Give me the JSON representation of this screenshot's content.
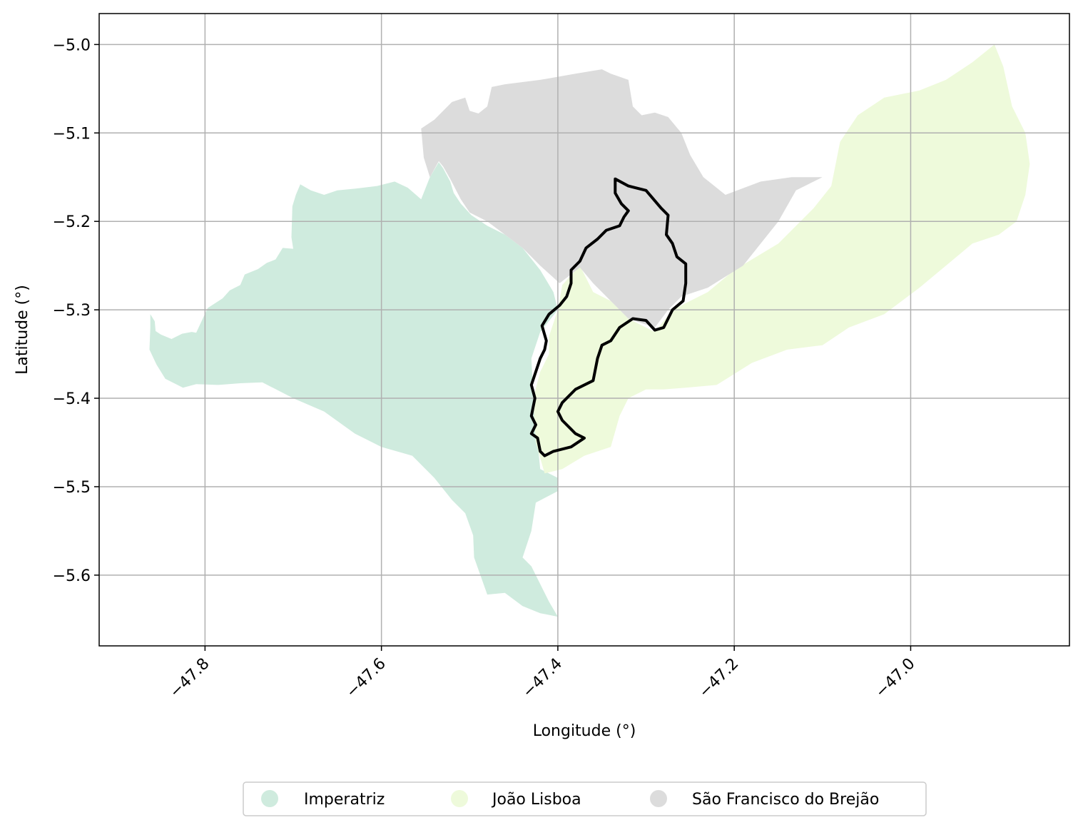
{
  "chart_data": {
    "type": "map",
    "xlabel": "Longitude (°)",
    "ylabel": "Latitude (°)",
    "xlim": [
      -47.92,
      -46.82
    ],
    "ylim": [
      -5.68,
      -4.965
    ],
    "grid": true,
    "legend_placement": "bottom-center",
    "x_ticks": [
      {
        "value": -47.8,
        "label": "−47.8"
      },
      {
        "value": -47.6,
        "label": "−47.6"
      },
      {
        "value": -47.4,
        "label": "−47.4"
      },
      {
        "value": -47.2,
        "label": "−47.2"
      },
      {
        "value": -47.0,
        "label": "−47.0"
      }
    ],
    "y_ticks": [
      {
        "value": -5.0,
        "label": "−5.0"
      },
      {
        "value": -5.1,
        "label": "−5.1"
      },
      {
        "value": -5.2,
        "label": "−5.2"
      },
      {
        "value": -5.3,
        "label": "−5.3"
      },
      {
        "value": -5.4,
        "label": "−5.4"
      },
      {
        "value": -5.5,
        "label": "−5.5"
      },
      {
        "value": -5.6,
        "label": "−5.6"
      }
    ],
    "regions": [
      {
        "name": "Imperatriz",
        "color": "#cfebde",
        "coords": [
          [
            -47.862,
            -5.305
          ],
          [
            -47.857,
            -5.313
          ],
          [
            -47.856,
            -5.324
          ],
          [
            -47.85,
            -5.328
          ],
          [
            -47.838,
            -5.333
          ],
          [
            -47.826,
            -5.327
          ],
          [
            -47.815,
            -5.325
          ],
          [
            -47.81,
            -5.326
          ],
          [
            -47.797,
            -5.298
          ],
          [
            -47.78,
            -5.287
          ],
          [
            -47.772,
            -5.278
          ],
          [
            -47.76,
            -5.272
          ],
          [
            -47.755,
            -5.26
          ],
          [
            -47.74,
            -5.254
          ],
          [
            -47.73,
            -5.247
          ],
          [
            -47.72,
            -5.243
          ],
          [
            -47.712,
            -5.23
          ],
          [
            -47.7,
            -5.231
          ],
          [
            -47.702,
            -5.218
          ],
          [
            -47.701,
            -5.183
          ],
          [
            -47.697,
            -5.17
          ],
          [
            -47.692,
            -5.158
          ],
          [
            -47.68,
            -5.165
          ],
          [
            -47.665,
            -5.17
          ],
          [
            -47.65,
            -5.165
          ],
          [
            -47.63,
            -5.163
          ],
          [
            -47.605,
            -5.16
          ],
          [
            -47.585,
            -5.155
          ],
          [
            -47.57,
            -5.162
          ],
          [
            -47.555,
            -5.175
          ],
          [
            -47.545,
            -5.15
          ],
          [
            -47.535,
            -5.133
          ],
          [
            -47.53,
            -5.14
          ],
          [
            -47.522,
            -5.155
          ],
          [
            -47.518,
            -5.168
          ],
          [
            -47.51,
            -5.18
          ],
          [
            -47.498,
            -5.193
          ],
          [
            -47.48,
            -5.205
          ],
          [
            -47.46,
            -5.215
          ],
          [
            -47.44,
            -5.23
          ],
          [
            -47.42,
            -5.255
          ],
          [
            -47.405,
            -5.28
          ],
          [
            -47.4,
            -5.3
          ],
          [
            -47.42,
            -5.325
          ],
          [
            -47.43,
            -5.355
          ],
          [
            -47.428,
            -5.395
          ],
          [
            -47.425,
            -5.43
          ],
          [
            -47.42,
            -5.48
          ],
          [
            -47.4,
            -5.49
          ],
          [
            -47.4,
            -5.505
          ],
          [
            -47.425,
            -5.518
          ],
          [
            -47.43,
            -5.55
          ],
          [
            -47.44,
            -5.58
          ],
          [
            -47.43,
            -5.59
          ],
          [
            -47.41,
            -5.63
          ],
          [
            -47.4,
            -5.647
          ],
          [
            -47.42,
            -5.643
          ],
          [
            -47.44,
            -5.635
          ],
          [
            -47.46,
            -5.62
          ],
          [
            -47.48,
            -5.622
          ],
          [
            -47.495,
            -5.58
          ],
          [
            -47.496,
            -5.555
          ],
          [
            -47.505,
            -5.53
          ],
          [
            -47.52,
            -5.515
          ],
          [
            -47.54,
            -5.49
          ],
          [
            -47.565,
            -5.465
          ],
          [
            -47.6,
            -5.455
          ],
          [
            -47.63,
            -5.44
          ],
          [
            -47.665,
            -5.415
          ],
          [
            -47.7,
            -5.4
          ],
          [
            -47.735,
            -5.382
          ],
          [
            -47.76,
            -5.383
          ],
          [
            -47.785,
            -5.385
          ],
          [
            -47.81,
            -5.384
          ],
          [
            -47.825,
            -5.388
          ],
          [
            -47.845,
            -5.378
          ],
          [
            -47.855,
            -5.362
          ],
          [
            -47.863,
            -5.345
          ],
          [
            -47.862,
            -5.32
          ]
        ]
      },
      {
        "name": "João Lisboa",
        "color": "#eefadb",
        "coords": [
          [
            -47.41,
            -5.35
          ],
          [
            -47.41,
            -5.33
          ],
          [
            -47.4,
            -5.3
          ],
          [
            -47.395,
            -5.272
          ],
          [
            -47.375,
            -5.25
          ],
          [
            -47.36,
            -5.28
          ],
          [
            -47.34,
            -5.29
          ],
          [
            -47.32,
            -5.31
          ],
          [
            -47.29,
            -5.325
          ],
          [
            -47.27,
            -5.3
          ],
          [
            -47.23,
            -5.28
          ],
          [
            -47.2,
            -5.255
          ],
          [
            -47.15,
            -5.225
          ],
          [
            -47.11,
            -5.185
          ],
          [
            -47.09,
            -5.16
          ],
          [
            -47.08,
            -5.11
          ],
          [
            -47.06,
            -5.08
          ],
          [
            -47.03,
            -5.06
          ],
          [
            -46.99,
            -5.052
          ],
          [
            -46.96,
            -5.04
          ],
          [
            -46.93,
            -5.02
          ],
          [
            -46.905,
            -5.0
          ],
          [
            -46.895,
            -5.025
          ],
          [
            -46.885,
            -5.07
          ],
          [
            -46.87,
            -5.1
          ],
          [
            -46.865,
            -5.135
          ],
          [
            -46.87,
            -5.17
          ],
          [
            -46.88,
            -5.2
          ],
          [
            -46.9,
            -5.215
          ],
          [
            -46.93,
            -5.225
          ],
          [
            -46.96,
            -5.25
          ],
          [
            -46.99,
            -5.275
          ],
          [
            -47.03,
            -5.305
          ],
          [
            -47.07,
            -5.32
          ],
          [
            -47.1,
            -5.34
          ],
          [
            -47.14,
            -5.345
          ],
          [
            -47.18,
            -5.36
          ],
          [
            -47.22,
            -5.385
          ],
          [
            -47.255,
            -5.388
          ],
          [
            -47.28,
            -5.39
          ],
          [
            -47.3,
            -5.39
          ],
          [
            -47.32,
            -5.4
          ],
          [
            -47.33,
            -5.42
          ],
          [
            -47.34,
            -5.455
          ],
          [
            -47.37,
            -5.465
          ],
          [
            -47.395,
            -5.48
          ],
          [
            -47.415,
            -5.485
          ],
          [
            -47.425,
            -5.45
          ],
          [
            -47.428,
            -5.4
          ],
          [
            -47.42,
            -5.37
          ]
        ]
      },
      {
        "name": "São Francisco do Brejão",
        "color": "#dcdcdc",
        "coords": [
          [
            -47.555,
            -5.095
          ],
          [
            -47.54,
            -5.085
          ],
          [
            -47.52,
            -5.065
          ],
          [
            -47.505,
            -5.06
          ],
          [
            -47.5,
            -5.075
          ],
          [
            -47.49,
            -5.078
          ],
          [
            -47.48,
            -5.07
          ],
          [
            -47.475,
            -5.048
          ],
          [
            -47.46,
            -5.045
          ],
          [
            -47.42,
            -5.04
          ],
          [
            -47.38,
            -5.033
          ],
          [
            -47.35,
            -5.028
          ],
          [
            -47.34,
            -5.033
          ],
          [
            -47.32,
            -5.04
          ],
          [
            -47.315,
            -5.07
          ],
          [
            -47.305,
            -5.08
          ],
          [
            -47.29,
            -5.077
          ],
          [
            -47.275,
            -5.082
          ],
          [
            -47.26,
            -5.1
          ],
          [
            -47.25,
            -5.125
          ],
          [
            -47.235,
            -5.15
          ],
          [
            -47.21,
            -5.17
          ],
          [
            -47.17,
            -5.155
          ],
          [
            -47.135,
            -5.15
          ],
          [
            -47.1,
            -5.15
          ],
          [
            -47.13,
            -5.165
          ],
          [
            -47.15,
            -5.2
          ],
          [
            -47.19,
            -5.25
          ],
          [
            -47.23,
            -5.275
          ],
          [
            -47.26,
            -5.285
          ],
          [
            -47.275,
            -5.3
          ],
          [
            -47.29,
            -5.32
          ],
          [
            -47.32,
            -5.31
          ],
          [
            -47.34,
            -5.29
          ],
          [
            -47.36,
            -5.27
          ],
          [
            -47.375,
            -5.252
          ],
          [
            -47.398,
            -5.27
          ],
          [
            -47.42,
            -5.25
          ],
          [
            -47.44,
            -5.23
          ],
          [
            -47.46,
            -5.215
          ],
          [
            -47.48,
            -5.2
          ],
          [
            -47.5,
            -5.19
          ],
          [
            -47.51,
            -5.175
          ],
          [
            -47.522,
            -5.152
          ],
          [
            -47.53,
            -5.138
          ],
          [
            -47.535,
            -5.132
          ],
          [
            -47.545,
            -5.15
          ],
          [
            -47.552,
            -5.128
          ]
        ]
      }
    ],
    "outline": {
      "color": "#000000",
      "coords": [
        [
          -47.335,
          -5.152
        ],
        [
          -47.32,
          -5.16
        ],
        [
          -47.3,
          -5.165
        ],
        [
          -47.283,
          -5.185
        ],
        [
          -47.275,
          -5.193
        ],
        [
          -47.277,
          -5.215
        ],
        [
          -47.27,
          -5.225
        ],
        [
          -47.265,
          -5.24
        ],
        [
          -47.255,
          -5.248
        ],
        [
          -47.255,
          -5.27
        ],
        [
          -47.258,
          -5.29
        ],
        [
          -47.27,
          -5.3
        ],
        [
          -47.28,
          -5.32
        ],
        [
          -47.29,
          -5.323
        ],
        [
          -47.3,
          -5.312
        ],
        [
          -47.315,
          -5.31
        ],
        [
          -47.33,
          -5.32
        ],
        [
          -47.34,
          -5.335
        ],
        [
          -47.35,
          -5.34
        ],
        [
          -47.355,
          -5.355
        ],
        [
          -47.36,
          -5.38
        ],
        [
          -47.37,
          -5.385
        ],
        [
          -47.38,
          -5.39
        ],
        [
          -47.395,
          -5.405
        ],
        [
          -47.4,
          -5.415
        ],
        [
          -47.395,
          -5.425
        ],
        [
          -47.385,
          -5.435
        ],
        [
          -47.38,
          -5.44
        ],
        [
          -47.37,
          -5.445
        ],
        [
          -47.385,
          -5.455
        ],
        [
          -47.405,
          -5.46
        ],
        [
          -47.415,
          -5.465
        ],
        [
          -47.42,
          -5.46
        ],
        [
          -47.423,
          -5.445
        ],
        [
          -47.43,
          -5.44
        ],
        [
          -47.425,
          -5.43
        ],
        [
          -47.43,
          -5.42
        ],
        [
          -47.428,
          -5.41
        ],
        [
          -47.426,
          -5.4
        ],
        [
          -47.43,
          -5.385
        ],
        [
          -47.425,
          -5.37
        ],
        [
          -47.42,
          -5.355
        ],
        [
          -47.415,
          -5.345
        ],
        [
          -47.413,
          -5.335
        ],
        [
          -47.418,
          -5.318
        ],
        [
          -47.41,
          -5.305
        ],
        [
          -47.398,
          -5.295
        ],
        [
          -47.39,
          -5.285
        ],
        [
          -47.385,
          -5.27
        ],
        [
          -47.385,
          -5.255
        ],
        [
          -47.375,
          -5.245
        ],
        [
          -47.368,
          -5.23
        ],
        [
          -47.355,
          -5.22
        ],
        [
          -47.345,
          -5.21
        ],
        [
          -47.33,
          -5.205
        ],
        [
          -47.325,
          -5.195
        ],
        [
          -47.32,
          -5.188
        ],
        [
          -47.328,
          -5.18
        ],
        [
          -47.335,
          -5.168
        ],
        [
          -47.335,
          -5.152
        ]
      ]
    },
    "legend": [
      {
        "label": "Imperatriz",
        "color": "#cfebde"
      },
      {
        "label": "João Lisboa",
        "color": "#eefadb"
      },
      {
        "label": "São Francisco do Brejão",
        "color": "#dcdcdc"
      }
    ]
  }
}
